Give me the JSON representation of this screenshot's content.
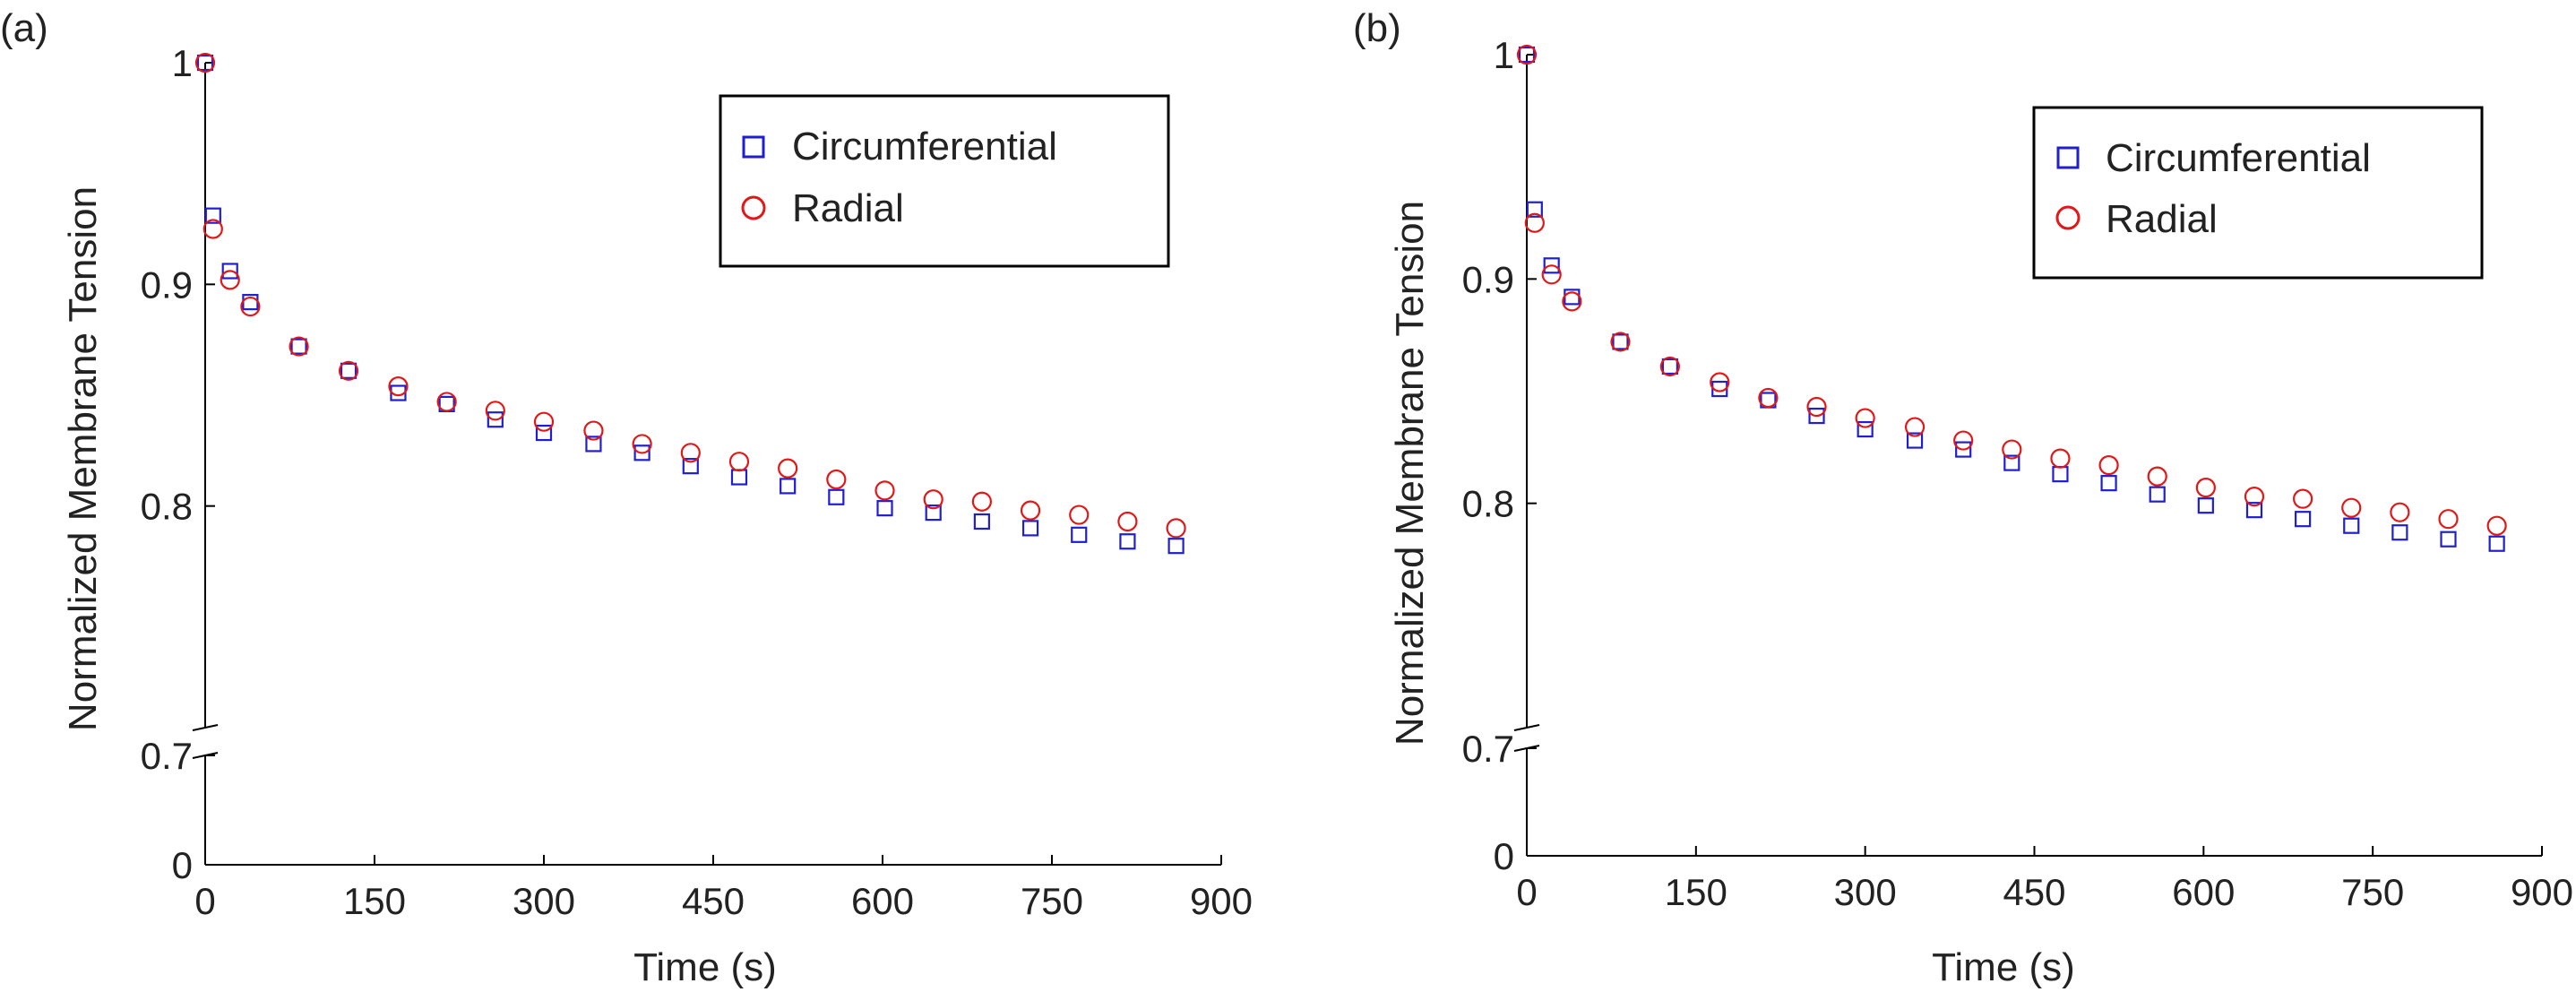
{
  "chart_data": [
    {
      "type": "scatter",
      "panel_label": "(a)",
      "xlabel": "Time (s)",
      "ylabel": "Normalized Membrane Tension",
      "xlim": [
        0,
        900
      ],
      "ylim": [
        0,
        1
      ],
      "axis_break": [
        0,
        0.7
      ],
      "xticks": [
        0,
        150,
        300,
        450,
        600,
        750,
        900
      ],
      "yticks": [
        0,
        0.7,
        0.8,
        0.9,
        1
      ],
      "ytick_labels": [
        "0",
        "0.7",
        "0.8",
        "0.9",
        "1"
      ],
      "legend_position": "top-right",
      "series": [
        {
          "name": "Circumferential",
          "marker": "square",
          "color": "#1f1fd0",
          "x": [
            0,
            7,
            22,
            40,
            83,
            127,
            171,
            214,
            257,
            300,
            344,
            387,
            430,
            473,
            516,
            559,
            602,
            645,
            688,
            731,
            774,
            817,
            860
          ],
          "y": [
            1.0,
            0.931,
            0.906,
            0.892,
            0.872,
            0.861,
            0.851,
            0.846,
            0.839,
            0.833,
            0.828,
            0.824,
            0.818,
            0.813,
            0.809,
            0.804,
            0.799,
            0.797,
            0.793,
            0.79,
            0.787,
            0.784,
            0.782
          ]
        },
        {
          "name": "Radial",
          "marker": "circle",
          "color": "#e01818",
          "x": [
            0,
            7,
            22,
            40,
            83,
            127,
            171,
            214,
            257,
            300,
            344,
            387,
            430,
            473,
            516,
            559,
            602,
            645,
            688,
            731,
            774,
            817,
            860
          ],
          "y": [
            1.0,
            0.925,
            0.902,
            0.89,
            0.872,
            0.861,
            0.854,
            0.847,
            0.843,
            0.838,
            0.834,
            0.828,
            0.824,
            0.82,
            0.817,
            0.812,
            0.807,
            0.803,
            0.802,
            0.798,
            0.796,
            0.793,
            0.79
          ]
        }
      ]
    },
    {
      "type": "scatter",
      "panel_label": "(b)",
      "xlabel": "Time (s)",
      "ylabel": "Normalized Membrane Tension",
      "xlim": [
        0,
        900
      ],
      "ylim": [
        0,
        1
      ],
      "axis_break": [
        0,
        0.7
      ],
      "xticks": [
        0,
        150,
        300,
        450,
        600,
        750,
        900
      ],
      "yticks": [
        0,
        0.7,
        0.8,
        0.9,
        1
      ],
      "ytick_labels": [
        "0",
        "0.7",
        "0.8",
        "0.9",
        "1"
      ],
      "legend_position": "top-right",
      "series": [
        {
          "name": "Circumferential",
          "marker": "square",
          "color": "#1f1fd0",
          "x": [
            0,
            7,
            22,
            40,
            83,
            127,
            171,
            214,
            257,
            300,
            344,
            387,
            430,
            473,
            516,
            559,
            602,
            645,
            688,
            731,
            774,
            817,
            860
          ],
          "y": [
            1.0,
            0.931,
            0.906,
            0.892,
            0.872,
            0.861,
            0.851,
            0.846,
            0.839,
            0.833,
            0.828,
            0.824,
            0.818,
            0.813,
            0.809,
            0.804,
            0.799,
            0.797,
            0.793,
            0.79,
            0.787,
            0.784,
            0.782
          ]
        },
        {
          "name": "Radial",
          "marker": "circle",
          "color": "#e01818",
          "x": [
            0,
            7,
            22,
            40,
            83,
            127,
            171,
            214,
            257,
            300,
            344,
            387,
            430,
            473,
            516,
            559,
            602,
            645,
            688,
            731,
            774,
            817,
            860
          ],
          "y": [
            1.0,
            0.925,
            0.902,
            0.89,
            0.872,
            0.861,
            0.854,
            0.847,
            0.843,
            0.838,
            0.834,
            0.828,
            0.824,
            0.82,
            0.817,
            0.812,
            0.807,
            0.803,
            0.802,
            0.798,
            0.796,
            0.793,
            0.79
          ]
        }
      ]
    }
  ]
}
